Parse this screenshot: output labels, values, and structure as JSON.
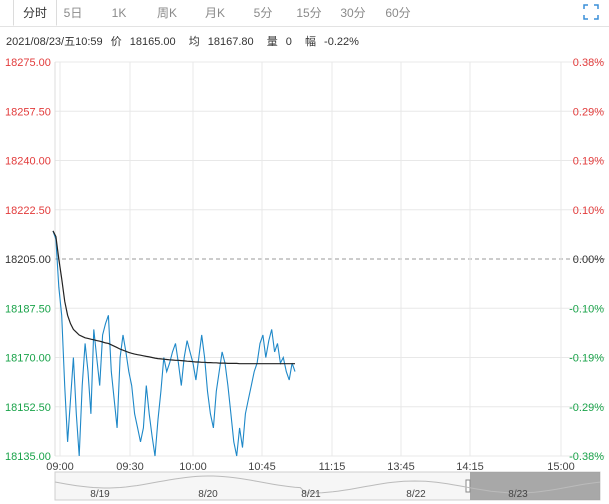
{
  "tabs": [
    {
      "label": "分时",
      "active": true
    },
    {
      "label": "5日",
      "active": false
    },
    {
      "label": "1K",
      "active": false
    },
    {
      "label": "周K",
      "active": false
    },
    {
      "label": "月K",
      "active": false
    },
    {
      "label": "5分",
      "active": false
    },
    {
      "label": "15分",
      "active": false
    },
    {
      "label": "30分",
      "active": false
    },
    {
      "label": "60分",
      "active": false
    }
  ],
  "expand_icon": "fullscreen-icon",
  "info": {
    "datetime": "2021/08/23/五10:59",
    "price_label": "价",
    "price": "18165.00",
    "avg_label": "均",
    "avg": "18167.80",
    "volume_label": "量",
    "volume": "0",
    "change_label": "幅",
    "change": "-0.22%"
  },
  "colors": {
    "up": "#e23b3b",
    "down": "#1aa34a",
    "flat": "#333333",
    "price_line": "#1e88c8",
    "avg_line": "#222222",
    "grid": "#e8e8e8"
  },
  "chart_data": {
    "type": "line",
    "y_left": [
      "18275.00",
      "18257.50",
      "18240.00",
      "18222.50",
      "18205.00",
      "18187.50",
      "18170.00",
      "18152.50",
      "18135.00"
    ],
    "y_right": [
      "0.38%",
      "0.29%",
      "0.19%",
      "0.10%",
      "0.00%",
      "-0.10%",
      "-0.19%",
      "-0.29%",
      "-0.38%"
    ],
    "x_ticks": [
      "09:00",
      "09:30",
      "10:00",
      "10:45",
      "11:15",
      "13:45",
      "14:15",
      "15:00"
    ],
    "ylim": [
      18135,
      18275
    ],
    "prev_close": 18205,
    "price": [
      18215,
      18212,
      18195,
      18185,
      18160,
      18140,
      18155,
      18170,
      18150,
      18135,
      18160,
      18175,
      18165,
      18150,
      18180,
      18170,
      18160,
      18178,
      18182,
      18185,
      18165,
      18155,
      18145,
      18170,
      18178,
      18172,
      18165,
      18160,
      18150,
      18145,
      18140,
      18145,
      18160,
      18150,
      18142,
      18135,
      18148,
      18158,
      18170,
      18165,
      18168,
      18172,
      18175,
      18168,
      18160,
      18170,
      18176,
      18172,
      18168,
      18162,
      18170,
      18178,
      18170,
      18158,
      18150,
      18145,
      18158,
      18165,
      18172,
      18168,
      18160,
      18150,
      18140,
      18135,
      18145,
      18138,
      18150,
      18155,
      18160,
      18165,
      18168,
      18175,
      18178,
      18170,
      18176,
      18180,
      18172,
      18175,
      18168,
      18170,
      18165,
      18162,
      18168,
      18165
    ],
    "avg": [
      18215,
      18213,
      18205,
      18198,
      18190,
      18185,
      18182,
      18180,
      18179,
      18178,
      18177.5,
      18177,
      18176.8,
      18176.5,
      18176.3,
      18176,
      18175.8,
      18175.5,
      18175.2,
      18175,
      18174.5,
      18174,
      18173.5,
      18173,
      18172.6,
      18172.2,
      18171.8,
      18171.5,
      18171.2,
      18171,
      18170.8,
      18170.6,
      18170.4,
      18170.2,
      18170,
      18169.8,
      18169.6,
      18169.5,
      18169.4,
      18169.3,
      18169.2,
      18169.1,
      18169,
      18169,
      18168.9,
      18168.8,
      18168.7,
      18168.6,
      18168.5,
      18168.4,
      18168.4,
      18168.3,
      18168.3,
      18168.2,
      18168.2,
      18168.1,
      18168.1,
      18168,
      18168,
      18168,
      18167.9,
      18167.9,
      18167.9,
      18167.9,
      18167.8,
      18167.8,
      18167.8,
      18167.8,
      18167.8,
      18167.8,
      18167.8,
      18167.8,
      18167.8,
      18167.8,
      18167.8,
      18167.8,
      18167.8,
      18167.8,
      18167.8,
      18167.8,
      18167.8,
      18167.8,
      18167.8,
      18167.8
    ],
    "navigator": {
      "dates": [
        "8/19",
        "8/20",
        "8/21",
        "8/22",
        "8/23"
      ]
    }
  }
}
